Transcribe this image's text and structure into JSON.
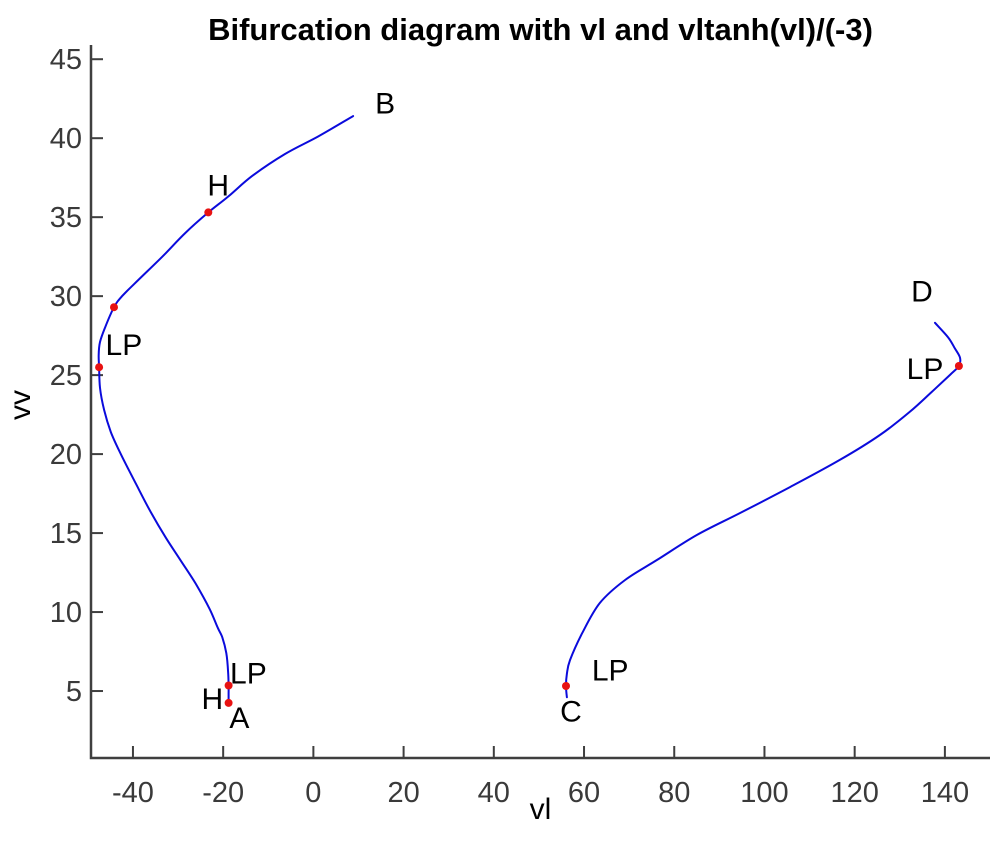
{
  "figure": {
    "background": "#ffffff"
  },
  "chart_data": {
    "type": "line",
    "title": "Bifurcation diagram with vl and vltanh(vl)/(-3)",
    "xlabel": "vl",
    "ylabel": "vv",
    "xlim": [
      -49.3,
      150.0
    ],
    "ylim": [
      0.76,
      45.9
    ],
    "x_ticks": [
      -40,
      -20,
      0,
      20,
      40,
      60,
      80,
      100,
      120,
      140
    ],
    "y_ticks": [
      5,
      10,
      15,
      20,
      25,
      30,
      35,
      40,
      45
    ],
    "grid": false,
    "legend": "none",
    "colors": {
      "curve": "#0b0bdc",
      "marker": "#e81212",
      "axis": "#3f3f3f",
      "tick_text": "#3a3a3a",
      "label_text": "#000000"
    },
    "series": [
      {
        "name": "left-equilibrium-branch",
        "points": [
          [
            -18.8,
            4.1
          ],
          [
            -18.8,
            4.8
          ],
          [
            -18.8,
            5.35
          ],
          [
            -18.9,
            6.2
          ],
          [
            -19.3,
            7.4
          ],
          [
            -20.2,
            8.4
          ],
          [
            -21.2,
            9.0
          ],
          [
            -23.0,
            10.2
          ],
          [
            -26.1,
            11.8
          ],
          [
            -29.5,
            13.3
          ],
          [
            -32.7,
            14.7
          ],
          [
            -36.0,
            16.3
          ],
          [
            -39.3,
            18.1
          ],
          [
            -42.7,
            20.0
          ],
          [
            -44.9,
            21.4
          ],
          [
            -46.4,
            22.8
          ],
          [
            -47.3,
            24.2
          ],
          [
            -47.5,
            25.5
          ],
          [
            -47.6,
            26.3
          ],
          [
            -47.3,
            27.1
          ],
          [
            -46.2,
            28.0
          ],
          [
            -44.2,
            29.3
          ],
          [
            -42.4,
            30.0
          ],
          [
            -38.9,
            31.0
          ],
          [
            -33.5,
            32.5
          ],
          [
            -28.4,
            34.0
          ],
          [
            -23.3,
            35.3
          ],
          [
            -18.9,
            36.3
          ],
          [
            -13.6,
            37.6
          ],
          [
            -6.3,
            39.0
          ],
          [
            1.0,
            40.1
          ],
          [
            8.8,
            41.4
          ]
        ]
      },
      {
        "name": "right-equilibrium-branch",
        "points": [
          [
            56.2,
            4.6
          ],
          [
            56.0,
            5.32
          ],
          [
            56.2,
            6.1
          ],
          [
            56.9,
            6.96
          ],
          [
            59.6,
            8.67
          ],
          [
            63.5,
            10.57
          ],
          [
            69.1,
            12.03
          ],
          [
            76.2,
            13.3
          ],
          [
            85.0,
            14.88
          ],
          [
            94.6,
            16.27
          ],
          [
            105.7,
            17.92
          ],
          [
            116.7,
            19.63
          ],
          [
            125.6,
            21.21
          ],
          [
            132.2,
            22.67
          ],
          [
            137.1,
            23.94
          ],
          [
            141.1,
            25.01
          ],
          [
            143.1,
            25.58
          ],
          [
            143.35,
            26.1
          ],
          [
            142.2,
            26.7
          ],
          [
            140.7,
            27.4
          ],
          [
            137.8,
            28.31
          ]
        ]
      }
    ],
    "markers": {
      "name": "bifurcation-points",
      "radius": 4,
      "points": [
        [
          -23.3,
          35.3
        ],
        [
          -44.2,
          29.3
        ],
        [
          -47.5,
          25.5
        ],
        [
          -18.8,
          5.35
        ],
        [
          -18.8,
          4.25
        ],
        [
          56.0,
          5.32
        ],
        [
          143.1,
          25.58
        ]
      ]
    },
    "annotations": [
      {
        "text": "B",
        "x": 15.9,
        "y": 42.2
      },
      {
        "text": "H",
        "x": -21.1,
        "y": 37.0
      },
      {
        "text": "LP",
        "x": -42.0,
        "y": 26.9
      },
      {
        "text": "LP",
        "x": -14.4,
        "y": 6.1
      },
      {
        "text": "H",
        "x": -22.4,
        "y": 4.5
      },
      {
        "text": "A",
        "x": -16.4,
        "y": 3.3
      },
      {
        "text": "LP",
        "x": 65.8,
        "y": 6.3
      },
      {
        "text": "C",
        "x": 57.1,
        "y": 3.7
      },
      {
        "text": "D",
        "x": 134.9,
        "y": 30.3
      },
      {
        "text": "LP",
        "x": 135.6,
        "y": 25.4
      }
    ]
  }
}
